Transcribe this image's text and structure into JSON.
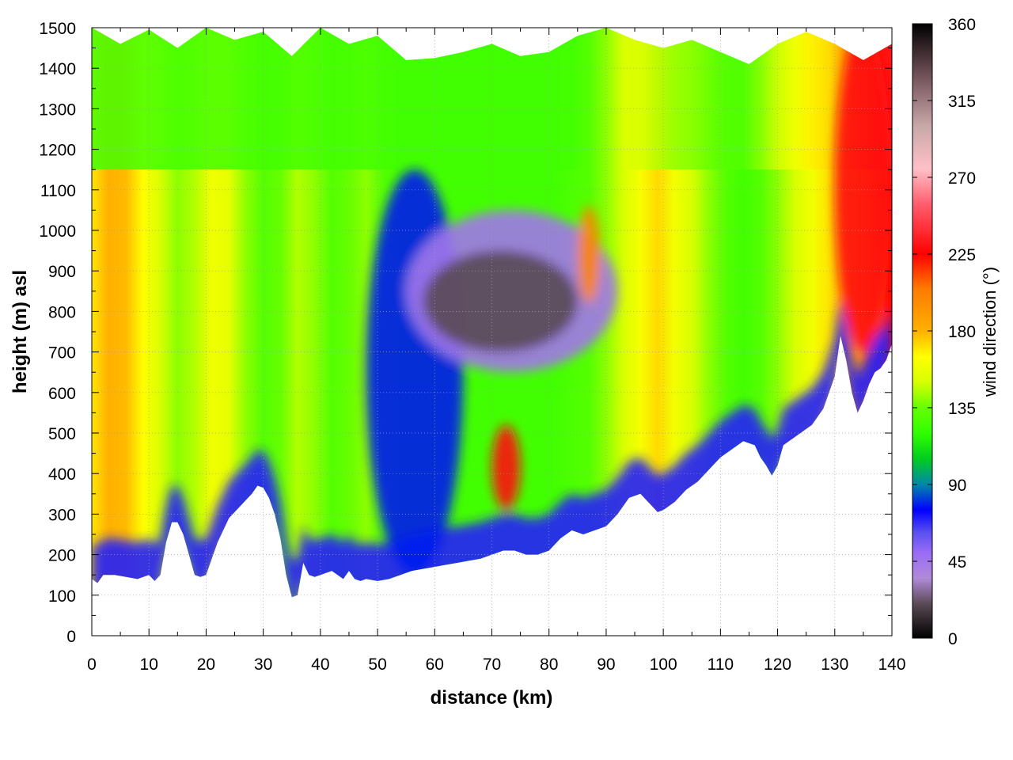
{
  "chart_data": {
    "type": "heatmap",
    "xlabel": "distance (km)",
    "ylabel": "height (m) asl",
    "colorbar_label": "wind direction (°)",
    "xlim": [
      0,
      140
    ],
    "ylim": [
      0,
      1500
    ],
    "clim": [
      0,
      360
    ],
    "x_ticks": [
      "0",
      "10",
      "20",
      "30",
      "40",
      "50",
      "60",
      "70",
      "80",
      "90",
      "100",
      "110",
      "120",
      "130",
      "140"
    ],
    "y_ticks": [
      "0",
      "100",
      "200",
      "300",
      "400",
      "500",
      "600",
      "700",
      "800",
      "900",
      "1000",
      "1100",
      "1200",
      "1300",
      "1400",
      "1500"
    ],
    "colorbar_ticks": [
      "0",
      "45",
      "90",
      "135",
      "180",
      "225",
      "270",
      "315",
      "360"
    ],
    "grid": true,
    "colormap": [
      [
        0,
        "#000000"
      ],
      [
        20,
        "#5a4a55"
      ],
      [
        35,
        "#b08ad8"
      ],
      [
        50,
        "#9a6cf5"
      ],
      [
        62,
        "#5a50f0"
      ],
      [
        75,
        "#0000ff"
      ],
      [
        90,
        "#0088a8"
      ],
      [
        105,
        "#00cc20"
      ],
      [
        120,
        "#30ff00"
      ],
      [
        135,
        "#66ff00"
      ],
      [
        150,
        "#d8ff00"
      ],
      [
        165,
        "#ffff00"
      ],
      [
        180,
        "#ffb000"
      ],
      [
        205,
        "#ff7a00"
      ],
      [
        225,
        "#ff0000"
      ],
      [
        255,
        "#ff6070"
      ],
      [
        275,
        "#ffc0c8"
      ],
      [
        300,
        "#c8a8a8"
      ],
      [
        330,
        "#705058"
      ],
      [
        360,
        "#000000"
      ]
    ],
    "terrain": {
      "x": [
        0,
        1,
        2,
        4,
        6,
        8,
        10,
        11,
        12,
        13,
        14,
        15,
        16,
        17,
        18,
        19,
        20,
        22,
        24,
        26,
        28,
        29,
        30,
        31,
        32,
        33,
        34,
        35,
        36,
        37,
        38,
        39,
        40,
        42,
        44,
        45,
        46,
        47,
        48,
        50,
        52,
        54,
        56,
        58,
        60,
        62,
        64,
        66,
        68,
        70,
        72,
        74,
        76,
        78,
        80,
        82,
        84,
        86,
        88,
        90,
        92,
        94,
        96,
        98,
        99,
        100,
        102,
        104,
        106,
        108,
        110,
        112,
        114,
        116,
        117,
        118,
        119,
        120,
        121,
        122,
        124,
        126,
        128,
        130,
        131,
        132,
        133,
        134,
        135,
        136,
        137,
        138,
        139,
        140
      ],
      "y": [
        140,
        130,
        150,
        150,
        145,
        140,
        150,
        135,
        150,
        230,
        280,
        280,
        250,
        200,
        150,
        145,
        150,
        230,
        290,
        320,
        350,
        370,
        365,
        340,
        300,
        240,
        150,
        95,
        100,
        180,
        150,
        145,
        150,
        160,
        140,
        160,
        140,
        135,
        140,
        135,
        140,
        150,
        160,
        165,
        170,
        175,
        180,
        185,
        190,
        200,
        210,
        210,
        200,
        200,
        210,
        240,
        260,
        250,
        260,
        270,
        300,
        340,
        350,
        320,
        305,
        310,
        330,
        360,
        380,
        410,
        440,
        460,
        480,
        470,
        440,
        420,
        395,
        420,
        470,
        480,
        500,
        520,
        560,
        640,
        740,
        680,
        600,
        550,
        580,
        620,
        650,
        660,
        680,
        720
      ]
    },
    "top": {
      "x": [
        0,
        5,
        10,
        15,
        20,
        25,
        30,
        35,
        40,
        45,
        50,
        55,
        60,
        65,
        70,
        75,
        80,
        85,
        90,
        95,
        100,
        105,
        110,
        115,
        120,
        125,
        130,
        135,
        140
      ],
      "y": [
        1500,
        1460,
        1495,
        1450,
        1500,
        1470,
        1490,
        1430,
        1500,
        1460,
        1480,
        1420,
        1425,
        1440,
        1460,
        1430,
        1440,
        1480,
        1500,
        1470,
        1450,
        1470,
        1440,
        1410,
        1460,
        1490,
        1460,
        1420,
        1460
      ]
    },
    "background_field": {
      "x": [
        0,
        3,
        6,
        9,
        12,
        15,
        18,
        21,
        24,
        27,
        30,
        33,
        36,
        39,
        42,
        45,
        48,
        51,
        54,
        57,
        60,
        63,
        66,
        69,
        72,
        75,
        78,
        81,
        84,
        87,
        90,
        93,
        96,
        99,
        102,
        105,
        108,
        111,
        114,
        117,
        120,
        123,
        126,
        129,
        132,
        135,
        138,
        140
      ],
      "direction": [
        170,
        180,
        178,
        165,
        150,
        140,
        145,
        160,
        155,
        140,
        130,
        135,
        145,
        140,
        130,
        135,
        140,
        130,
        125,
        125,
        125,
        125,
        125,
        125,
        125,
        125,
        125,
        125,
        128,
        130,
        140,
        150,
        162,
        172,
        160,
        150,
        140,
        130,
        125,
        130,
        140,
        150,
        160,
        170,
        180,
        195,
        215,
        225
      ],
      "upper_direction": [
        125,
        125,
        125,
        125,
        125,
        125,
        125,
        125,
        125,
        125,
        125,
        125,
        125,
        125,
        125,
        125,
        125,
        125,
        125,
        125,
        125,
        125,
        125,
        125,
        125,
        125,
        125,
        125,
        125,
        130,
        140,
        150,
        150,
        145,
        140,
        138,
        135,
        130,
        130,
        140,
        150,
        160,
        168,
        172,
        190,
        215,
        230,
        232
      ]
    },
    "features": [
      {
        "name": "low-level easterly layer",
        "x": [
          0,
          140
        ],
        "height_above_ground": [
          0,
          90
        ],
        "direction": 70
      },
      {
        "name": "valley blue column",
        "x": [
          48,
          65
        ],
        "height": [
          150,
          1150
        ],
        "direction": 78
      },
      {
        "name": "mid-level purple band",
        "x": [
          55,
          92
        ],
        "height": [
          650,
          1050
        ],
        "direction": 45
      },
      {
        "name": "dark core",
        "x": [
          58,
          85
        ],
        "height": [
          700,
          950
        ],
        "direction": 20
      },
      {
        "name": "red patch near 72 km",
        "x": [
          70,
          75
        ],
        "height": [
          310,
          520
        ],
        "direction": 230
      },
      {
        "name": "orange patch near 87 km",
        "x": [
          85,
          89
        ],
        "height": [
          820,
          1060
        ],
        "direction": 200
      },
      {
        "name": "red upper-right region",
        "x": [
          130,
          140
        ],
        "height": [
          700,
          1500
        ],
        "direction": 230
      }
    ]
  }
}
